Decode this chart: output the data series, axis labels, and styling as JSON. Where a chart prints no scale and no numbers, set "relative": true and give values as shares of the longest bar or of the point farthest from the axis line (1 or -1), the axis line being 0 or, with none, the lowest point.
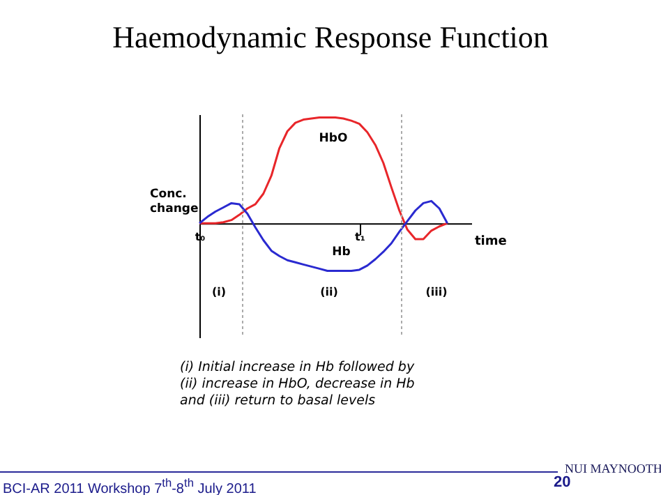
{
  "chart_data": {
    "type": "line",
    "title": "Haemodynamic Response Function",
    "ylabel": "Conc. change",
    "xlabel": "time",
    "relative": true,
    "categories": [
      "t₀",
      null,
      null,
      null,
      null,
      null,
      null,
      null,
      null,
      null,
      null,
      null,
      null,
      null,
      null,
      null,
      null,
      null,
      null,
      null,
      "t₁",
      null,
      null,
      null,
      null,
      null,
      null,
      null,
      null,
      null,
      null,
      null,
      null,
      null,
      null
    ],
    "series": [
      {
        "name": "HbO",
        "color": "#e8262a",
        "values": [
          0,
          0,
          0,
          0.01,
          0.03,
          0.08,
          0.14,
          0.18,
          0.28,
          0.45,
          0.71,
          0.87,
          0.95,
          0.98,
          0.99,
          1.0,
          1.0,
          1.0,
          0.99,
          0.97,
          0.94,
          0.86,
          0.74,
          0.57,
          0.34,
          0.12,
          -0.06,
          -0.15,
          -0.15,
          -0.07,
          -0.03,
          0,
          null,
          null,
          null
        ]
      },
      {
        "name": "Hb",
        "color": "#2a2ad0",
        "values": [
          0,
          0.06,
          0.11,
          0.15,
          0.19,
          0.18,
          0.09,
          -0.04,
          -0.16,
          -0.26,
          -0.31,
          -0.35,
          -0.37,
          -0.39,
          -0.41,
          -0.43,
          -0.45,
          -0.45,
          -0.45,
          -0.45,
          -0.44,
          -0.4,
          -0.34,
          -0.27,
          -0.19,
          -0.08,
          0.02,
          0.12,
          0.19,
          0.21,
          0.14,
          0,
          null,
          null,
          null
        ]
      }
    ],
    "annotations": [
      "(i)",
      "(ii)",
      "(iii)",
      "(i) Initial increase in Hb followed by",
      "(ii) increase in HbO, decrease in Hb",
      "and (iii) return to basal levels",
      "BCI-AR 2011 Workshop 7$^{th}$-8$^{th}$ July 2011",
      "20",
      "NUI MAYNOOTH"
    ]
  }
}
